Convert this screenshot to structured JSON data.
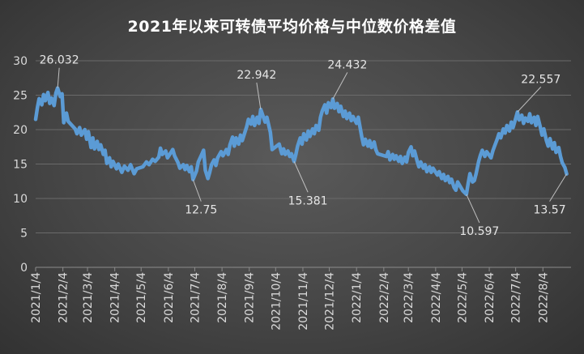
{
  "chart_data": {
    "type": "line",
    "title": "2021年以来可转债平均价格与中位数价格差值",
    "xlabel": "",
    "ylabel": "",
    "ylim": [
      0,
      30
    ],
    "yticks": [
      0,
      5,
      10,
      15,
      20,
      25,
      30
    ],
    "xlim": [
      "2021-01-04",
      "2022-09-05"
    ],
    "xticks": [
      "2021/1/4",
      "2021/2/4",
      "2021/3/4",
      "2021/4/4",
      "2021/5/4",
      "2021/6/4",
      "2021/7/4",
      "2021/8/4",
      "2021/9/4",
      "2021/10/4",
      "2021/11/4",
      "2021/12/4",
      "2022/1/4",
      "2022/2/4",
      "2022/3/4",
      "2022/4/4",
      "2022/5/4",
      "2022/6/4",
      "2022/7/4",
      "2022/8/4"
    ],
    "grid": true,
    "legend": "none",
    "line_color": "#5b9bd5",
    "series": [
      {
        "points": [
          [
            "2021-01-04",
            21.5
          ],
          [
            "2021-01-06",
            23.2
          ],
          [
            "2021-01-08",
            24.5
          ],
          [
            "2021-01-11",
            23.6
          ],
          [
            "2021-01-13",
            25.1
          ],
          [
            "2021-01-15",
            24.2
          ],
          [
            "2021-01-18",
            25.4
          ],
          [
            "2021-01-20",
            23.8
          ],
          [
            "2021-01-22",
            24.6
          ],
          [
            "2021-01-25",
            23.5
          ],
          [
            "2021-01-27",
            25.3
          ],
          [
            "2021-01-29",
            26.032
          ],
          [
            "2021-02-01",
            24.8
          ],
          [
            "2021-02-03",
            25.2
          ],
          [
            "2021-02-05",
            21.0
          ],
          [
            "2021-02-08",
            22.4
          ],
          [
            "2021-02-10",
            21.2
          ],
          [
            "2021-02-18",
            20.1
          ],
          [
            "2021-02-20",
            19.4
          ],
          [
            "2021-02-23",
            20.3
          ],
          [
            "2021-02-25",
            19.2
          ],
          [
            "2021-03-01",
            20.0
          ],
          [
            "2021-03-03",
            18.6
          ],
          [
            "2021-03-05",
            19.7
          ],
          [
            "2021-03-08",
            17.4
          ],
          [
            "2021-03-10",
            18.8
          ],
          [
            "2021-03-12",
            17.2
          ],
          [
            "2021-03-15",
            18.3
          ],
          [
            "2021-03-17",
            17.1
          ],
          [
            "2021-03-19",
            17.8
          ],
          [
            "2021-03-22",
            16.4
          ],
          [
            "2021-03-24",
            17.0
          ],
          [
            "2021-03-26",
            15.1
          ],
          [
            "2021-03-29",
            15.9
          ],
          [
            "2021-03-31",
            14.6
          ],
          [
            "2021-04-02",
            15.4
          ],
          [
            "2021-04-06",
            14.3
          ],
          [
            "2021-04-08",
            15.0
          ],
          [
            "2021-04-12",
            13.8
          ],
          [
            "2021-04-15",
            14.7
          ],
          [
            "2021-04-19",
            14.1
          ],
          [
            "2021-04-22",
            14.9
          ],
          [
            "2021-04-26",
            13.6
          ],
          [
            "2021-04-29",
            14.3
          ],
          [
            "2021-05-06",
            14.6
          ],
          [
            "2021-05-10",
            15.3
          ],
          [
            "2021-05-13",
            14.9
          ],
          [
            "2021-05-17",
            15.7
          ],
          [
            "2021-05-20",
            15.4
          ],
          [
            "2021-05-24",
            16.0
          ],
          [
            "2021-05-26",
            17.3
          ],
          [
            "2021-05-28",
            16.4
          ],
          [
            "2021-06-01",
            16.9
          ],
          [
            "2021-06-03",
            15.9
          ],
          [
            "2021-06-07",
            16.7
          ],
          [
            "2021-06-09",
            17.1
          ],
          [
            "2021-06-11",
            16.2
          ],
          [
            "2021-06-15",
            15.2
          ],
          [
            "2021-06-17",
            14.4
          ],
          [
            "2021-06-21",
            14.9
          ],
          [
            "2021-06-23",
            14.2
          ],
          [
            "2021-06-25",
            14.8
          ],
          [
            "2021-06-28",
            13.9
          ],
          [
            "2021-06-30",
            14.6
          ],
          [
            "2021-07-02",
            12.75
          ],
          [
            "2021-07-06",
            14.0
          ],
          [
            "2021-07-08",
            15.3
          ],
          [
            "2021-07-12",
            16.4
          ],
          [
            "2021-07-14",
            17.0
          ],
          [
            "2021-07-16",
            14.1
          ],
          [
            "2021-07-19",
            12.9
          ],
          [
            "2021-07-21",
            13.8
          ],
          [
            "2021-07-23",
            14.9
          ],
          [
            "2021-07-26",
            15.6
          ],
          [
            "2021-07-28",
            14.8
          ],
          [
            "2021-07-30",
            15.9
          ],
          [
            "2021-08-03",
            16.8
          ],
          [
            "2021-08-05",
            16.2
          ],
          [
            "2021-08-09",
            17.1
          ],
          [
            "2021-08-11",
            16.4
          ],
          [
            "2021-08-13",
            17.8
          ],
          [
            "2021-08-16",
            18.9
          ],
          [
            "2021-08-18",
            17.6
          ],
          [
            "2021-08-20",
            18.8
          ],
          [
            "2021-08-23",
            17.9
          ],
          [
            "2021-08-25",
            19.2
          ],
          [
            "2021-08-27",
            18.4
          ],
          [
            "2021-08-30",
            19.6
          ],
          [
            "2021-09-01",
            20.4
          ],
          [
            "2021-09-03",
            21.5
          ],
          [
            "2021-09-06",
            20.8
          ],
          [
            "2021-09-08",
            21.9
          ],
          [
            "2021-09-10",
            20.6
          ],
          [
            "2021-09-13",
            21.8
          ],
          [
            "2021-09-15",
            20.9
          ],
          [
            "2021-09-17",
            22.942
          ],
          [
            "2021-09-22",
            21.1
          ],
          [
            "2021-09-24",
            21.8
          ],
          [
            "2021-09-28",
            19.6
          ],
          [
            "2021-09-30",
            17.1
          ],
          [
            "2021-10-08",
            17.9
          ],
          [
            "2021-10-11",
            16.5
          ],
          [
            "2021-10-13",
            17.2
          ],
          [
            "2021-10-15",
            16.4
          ],
          [
            "2021-10-18",
            16.9
          ],
          [
            "2021-10-20",
            16.1
          ],
          [
            "2021-10-22",
            16.5
          ],
          [
            "2021-10-25",
            15.381
          ],
          [
            "2021-10-27",
            16.4
          ],
          [
            "2021-10-29",
            17.6
          ],
          [
            "2021-11-01",
            18.8
          ],
          [
            "2021-11-03",
            17.9
          ],
          [
            "2021-11-05",
            19.4
          ],
          [
            "2021-11-08",
            18.5
          ],
          [
            "2021-11-10",
            19.8
          ],
          [
            "2021-11-12",
            19.0
          ],
          [
            "2021-11-15",
            20.1
          ],
          [
            "2021-11-17",
            19.4
          ],
          [
            "2021-11-19",
            20.6
          ],
          [
            "2021-11-22",
            19.9
          ],
          [
            "2021-11-24",
            21.8
          ],
          [
            "2021-11-26",
            22.7
          ],
          [
            "2021-11-29",
            23.6
          ],
          [
            "2021-12-01",
            22.4
          ],
          [
            "2021-12-03",
            23.9
          ],
          [
            "2021-12-06",
            23.2
          ],
          [
            "2021-12-08",
            24.432
          ],
          [
            "2021-12-10",
            23.1
          ],
          [
            "2021-12-13",
            23.8
          ],
          [
            "2021-12-15",
            22.6
          ],
          [
            "2021-12-17",
            23.4
          ],
          [
            "2021-12-20",
            21.9
          ],
          [
            "2021-12-22",
            22.7
          ],
          [
            "2021-12-24",
            21.6
          ],
          [
            "2021-12-27",
            22.4
          ],
          [
            "2021-12-29",
            21.3
          ],
          [
            "2021-12-31",
            21.9
          ],
          [
            "2022-01-04",
            20.9
          ],
          [
            "2022-01-06",
            21.8
          ],
          [
            "2022-01-10",
            18.9
          ],
          [
            "2022-01-12",
            17.8
          ],
          [
            "2022-01-14",
            18.6
          ],
          [
            "2022-01-17",
            17.6
          ],
          [
            "2022-01-19",
            18.4
          ],
          [
            "2022-01-21",
            17.4
          ],
          [
            "2022-01-24",
            18.2
          ],
          [
            "2022-01-26",
            17.1
          ],
          [
            "2022-01-28",
            16.5
          ],
          [
            "2022-02-07",
            16.1
          ],
          [
            "2022-02-09",
            16.8
          ],
          [
            "2022-02-11",
            15.6
          ],
          [
            "2022-02-14",
            16.4
          ],
          [
            "2022-02-16",
            15.7
          ],
          [
            "2022-02-18",
            16.2
          ],
          [
            "2022-02-21",
            15.4
          ],
          [
            "2022-02-23",
            16.1
          ],
          [
            "2022-02-25",
            15.1
          ],
          [
            "2022-02-28",
            16.0
          ],
          [
            "2022-03-02",
            15.3
          ],
          [
            "2022-03-04",
            16.7
          ],
          [
            "2022-03-07",
            17.5
          ],
          [
            "2022-03-09",
            16.2
          ],
          [
            "2022-03-11",
            16.9
          ],
          [
            "2022-03-14",
            15.4
          ],
          [
            "2022-03-16",
            14.6
          ],
          [
            "2022-03-18",
            15.3
          ],
          [
            "2022-03-21",
            14.4
          ],
          [
            "2022-03-23",
            14.9
          ],
          [
            "2022-03-25",
            13.9
          ],
          [
            "2022-03-28",
            14.6
          ],
          [
            "2022-03-30",
            13.8
          ],
          [
            "2022-04-01",
            14.4
          ],
          [
            "2022-04-06",
            13.4
          ],
          [
            "2022-04-08",
            13.9
          ],
          [
            "2022-04-11",
            12.9
          ],
          [
            "2022-04-13",
            13.5
          ],
          [
            "2022-04-15",
            12.6
          ],
          [
            "2022-04-18",
            13.2
          ],
          [
            "2022-04-20",
            12.3
          ],
          [
            "2022-04-22",
            12.8
          ],
          [
            "2022-04-25",
            11.6
          ],
          [
            "2022-04-27",
            11.2
          ],
          [
            "2022-04-29",
            12.4
          ],
          [
            "2022-05-05",
            11.1
          ],
          [
            "2022-05-09",
            10.597
          ],
          [
            "2022-05-11",
            12.2
          ],
          [
            "2022-05-13",
            13.6
          ],
          [
            "2022-05-16",
            12.4
          ],
          [
            "2022-05-18",
            12.6
          ],
          [
            "2022-05-20",
            13.6
          ],
          [
            "2022-05-23",
            15.4
          ],
          [
            "2022-05-25",
            16.3
          ],
          [
            "2022-05-27",
            17.0
          ],
          [
            "2022-05-30",
            16.1
          ],
          [
            "2022-06-01",
            16.8
          ],
          [
            "2022-06-06",
            15.9
          ],
          [
            "2022-06-08",
            16.9
          ],
          [
            "2022-06-10",
            17.6
          ],
          [
            "2022-06-13",
            18.6
          ],
          [
            "2022-06-15",
            19.4
          ],
          [
            "2022-06-17",
            18.8
          ],
          [
            "2022-06-20",
            20.1
          ],
          [
            "2022-06-22",
            19.5
          ],
          [
            "2022-06-24",
            20.6
          ],
          [
            "2022-06-27",
            19.8
          ],
          [
            "2022-06-29",
            21.1
          ],
          [
            "2022-07-01",
            20.3
          ],
          [
            "2022-07-04",
            21.6
          ],
          [
            "2022-07-06",
            22.557
          ],
          [
            "2022-07-08",
            21.4
          ],
          [
            "2022-07-11",
            22.1
          ],
          [
            "2022-07-13",
            20.9
          ],
          [
            "2022-07-15",
            21.7
          ],
          [
            "2022-07-18",
            21.2
          ],
          [
            "2022-07-20",
            22.3
          ],
          [
            "2022-07-22",
            21.0
          ],
          [
            "2022-07-25",
            21.8
          ],
          [
            "2022-07-27",
            20.6
          ],
          [
            "2022-07-29",
            21.9
          ],
          [
            "2022-08-01",
            20.4
          ],
          [
            "2022-08-03",
            19.2
          ],
          [
            "2022-08-05",
            20.1
          ],
          [
            "2022-08-08",
            18.4
          ],
          [
            "2022-08-10",
            17.6
          ],
          [
            "2022-08-12",
            18.7
          ],
          [
            "2022-08-15",
            17.2
          ],
          [
            "2022-08-17",
            18.1
          ],
          [
            "2022-08-19",
            16.7
          ],
          [
            "2022-08-22",
            17.4
          ],
          [
            "2022-08-24",
            16.1
          ],
          [
            "2022-08-26",
            15.2
          ],
          [
            "2022-08-29",
            14.5
          ],
          [
            "2022-08-31",
            13.57
          ]
        ]
      }
    ],
    "annotations": [
      {
        "text": "26.032",
        "x": "2021-01-29",
        "y": 26.032
      },
      {
        "text": "12.75",
        "x": "2021-07-02",
        "y": 12.75
      },
      {
        "text": "22.942",
        "x": "2021-09-17",
        "y": 22.942
      },
      {
        "text": "15.381",
        "x": "2021-10-25",
        "y": 15.381
      },
      {
        "text": "24.432",
        "x": "2021-12-08",
        "y": 24.432
      },
      {
        "text": "10.597",
        "x": "2022-05-09",
        "y": 10.597
      },
      {
        "text": "22.557",
        "x": "2022-07-06",
        "y": 22.557
      },
      {
        "text": "13.57",
        "x": "2022-08-31",
        "y": 13.57
      }
    ]
  }
}
